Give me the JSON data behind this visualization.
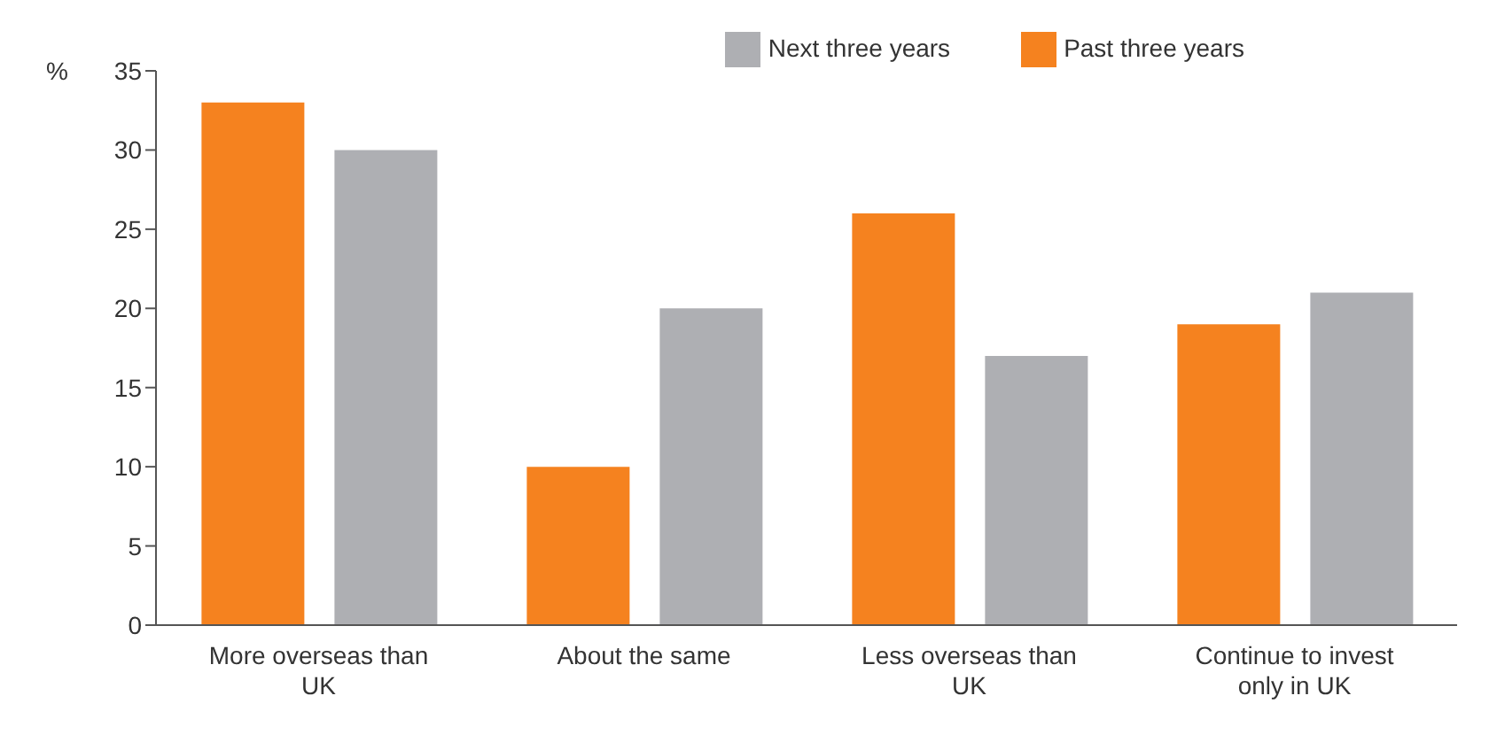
{
  "chart_data": {
    "type": "bar",
    "ylabel": "%",
    "categories": [
      "More overseas than UK",
      "About the same",
      "Less overseas than UK",
      "Continue to invest only in UK"
    ],
    "series": [
      {
        "name": "Past three years",
        "color": "#f5821f",
        "values": [
          33,
          10,
          26,
          19
        ]
      },
      {
        "name": "Next three years",
        "color": "#aeafb3",
        "values": [
          30,
          20,
          17,
          21
        ]
      }
    ],
    "ylim": [
      0,
      35
    ],
    "yticks": [
      0,
      5,
      10,
      15,
      20,
      25,
      30,
      35
    ],
    "grid": false,
    "legend": "top right"
  }
}
